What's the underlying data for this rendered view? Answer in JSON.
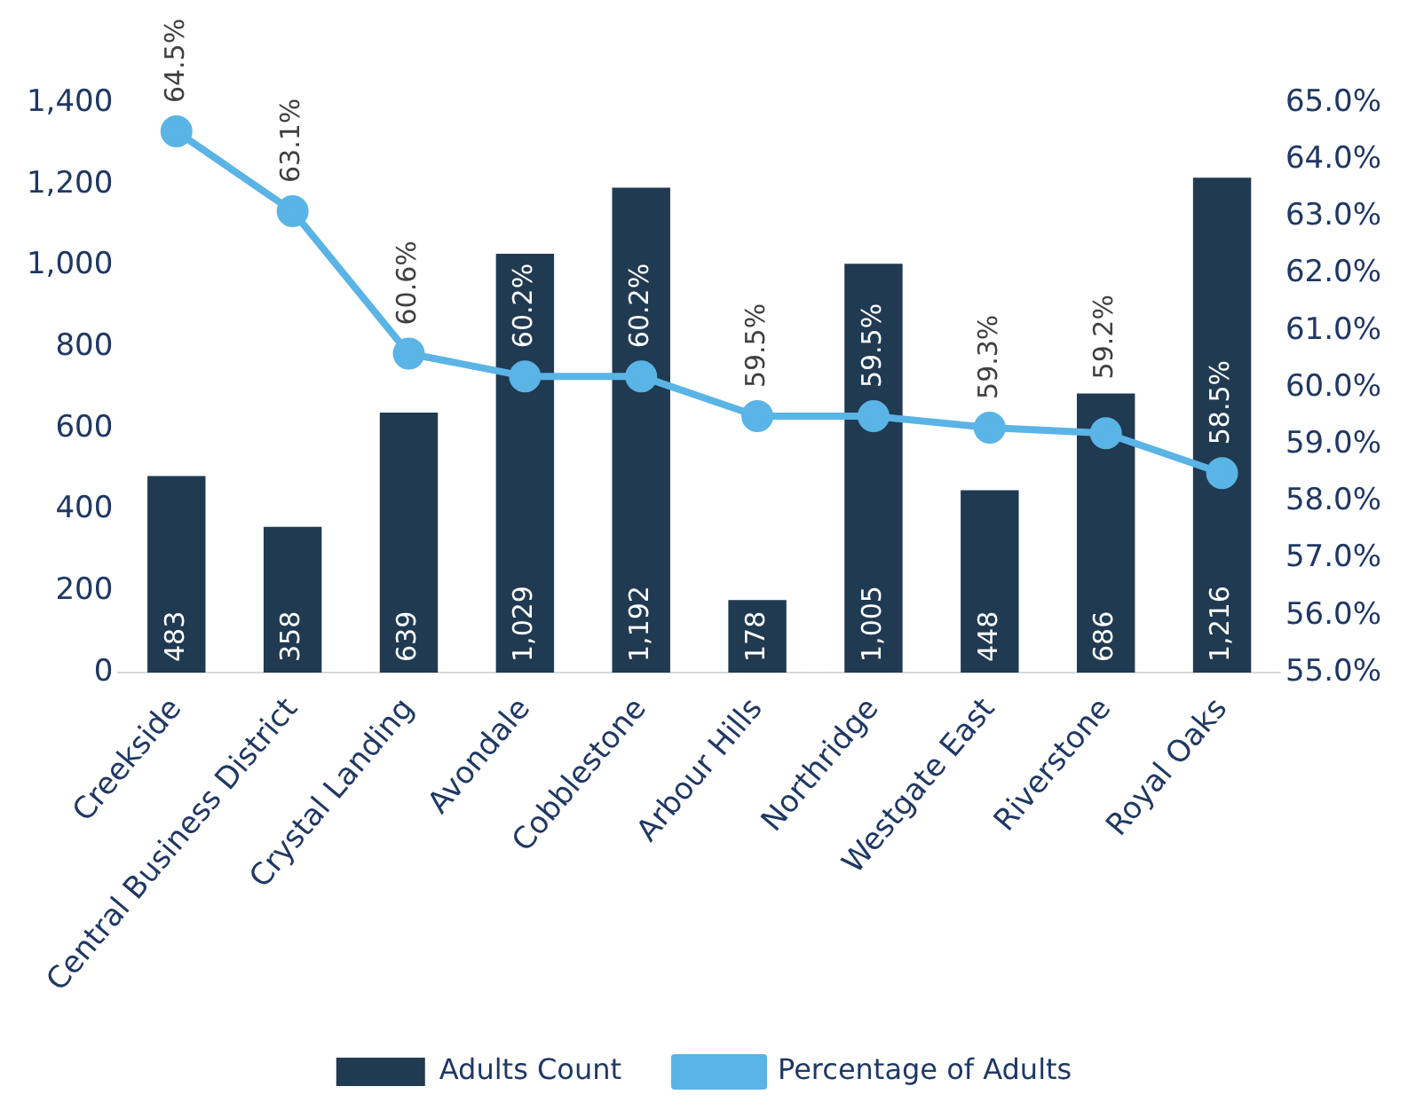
{
  "chart_data": {
    "type": "bar",
    "categories": [
      "Creekside",
      "Central Business District",
      "Crystal Landing",
      "Avondale",
      "Cobblestone",
      "Arbour Hills",
      "Northridge",
      "Westgate East",
      "Riverstone",
      "Royal Oaks"
    ],
    "series": [
      {
        "name": "Adults Count",
        "color": "#203a52",
        "values": [
          483,
          358,
          639,
          1029,
          1192,
          178,
          1005,
          448,
          686,
          1216
        ],
        "value_labels": [
          "483",
          "358",
          "639",
          "1,029",
          "1,192",
          "178",
          "1,005",
          "448",
          "686",
          "1,216"
        ]
      },
      {
        "name": "Percentage of Adults",
        "type": "line",
        "axis": "y2",
        "color": "#5ab4e5",
        "marker": "circle",
        "values": [
          64.5,
          63.1,
          60.6,
          60.2,
          60.2,
          59.5,
          59.5,
          59.3,
          59.2,
          58.5
        ],
        "value_labels": [
          "64.5%",
          "63.1%",
          "60.6%",
          "60.2%",
          "60.2%",
          "59.5%",
          "59.5%",
          "59.3%",
          "59.2%",
          "58.5%"
        ]
      }
    ],
    "ylim": [
      0,
      1400
    ],
    "yticks": [
      0,
      {
        "value": 200,
        "label": "200"
      },
      {
        "value": 400,
        "label": "400"
      },
      {
        "value": 600,
        "label": "600"
      },
      {
        "value": 800,
        "label": "800"
      },
      {
        "value": 1000,
        "label": "1,000"
      },
      {
        "value": 1200,
        "label": "1,200"
      },
      {
        "value": 1400,
        "label": "1,400"
      }
    ],
    "y2lim": [
      55,
      65
    ],
    "y2ticks": [
      {
        "value": 55,
        "label": "55.0%"
      },
      {
        "value": 56,
        "label": "56.0%"
      },
      {
        "value": 57,
        "label": "57.0%"
      },
      {
        "value": 58,
        "label": "58.0%"
      },
      {
        "value": 59,
        "label": "59.0%"
      },
      {
        "value": 60,
        "label": "60.0%"
      },
      {
        "value": 61,
        "label": "61.0%"
      },
      {
        "value": 62,
        "label": "62.0%"
      },
      {
        "value": 63,
        "label": "63.0%"
      },
      {
        "value": 64,
        "label": "64.0%"
      },
      {
        "value": 65,
        "label": "65.0%"
      }
    ],
    "grid": false,
    "legend": "bottom"
  }
}
